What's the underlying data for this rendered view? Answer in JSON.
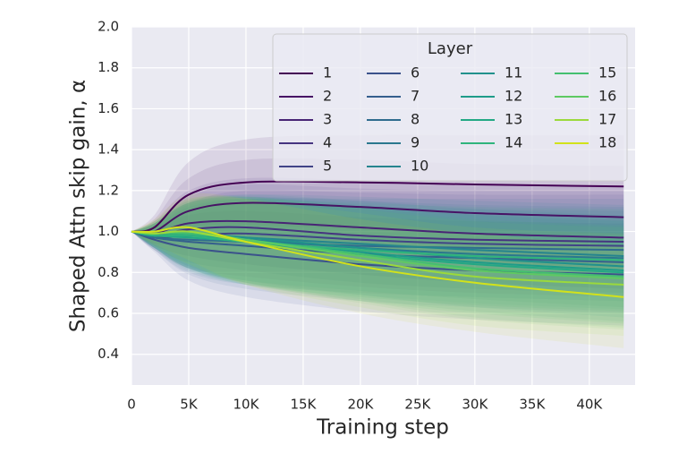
{
  "chart_data": {
    "type": "line",
    "xlabel": "Training step",
    "ylabel": "Shaped Attn skip gain, α",
    "xlim": [
      0,
      44000
    ],
    "ylim": [
      0.25,
      2.0
    ],
    "xticks": [
      0,
      {
        "value": 5000,
        "label": "5K"
      },
      {
        "value": 10000,
        "label": "10K"
      },
      {
        "value": 15000,
        "label": "15K"
      },
      {
        "value": 20000,
        "label": "20K"
      },
      {
        "value": 25000,
        "label": "25K"
      },
      {
        "value": 30000,
        "label": "30K"
      },
      {
        "value": 35000,
        "label": "35K"
      },
      {
        "value": 40000,
        "label": "40K"
      }
    ],
    "yticks": [
      {
        "value": 0.4,
        "label": "0.4"
      },
      {
        "value": 0.6,
        "label": "0.6"
      },
      {
        "value": 0.8,
        "label": "0.8"
      },
      {
        "value": 1.0,
        "label": "1.0"
      },
      {
        "value": 1.2,
        "label": "1.2"
      },
      {
        "value": 1.4,
        "label": "1.4"
      },
      {
        "value": 1.6,
        "label": "1.6"
      },
      {
        "value": 1.8,
        "label": "1.8"
      },
      {
        "value": 2.0,
        "label": "2.0"
      }
    ],
    "grid": true,
    "legend_title": "Layer",
    "legend_loc": "upper right",
    "x": [
      0,
      2000,
      5000,
      10000,
      20000,
      30000,
      43000
    ],
    "series": [
      {
        "name": "1",
        "color": "#440154",
        "values": [
          1.0,
          1.02,
          1.18,
          1.24,
          1.24,
          1.23,
          1.22
        ],
        "lower": [
          1.0,
          0.96,
          1.02,
          1.03,
          1.01,
          0.99,
          0.97
        ],
        "upper": [
          1.0,
          1.08,
          1.34,
          1.45,
          1.47,
          1.47,
          1.47
        ]
      },
      {
        "name": "2",
        "color": "#471365",
        "values": [
          1.0,
          1.0,
          1.1,
          1.14,
          1.12,
          1.09,
          1.07
        ],
        "lower": [
          1.0,
          0.94,
          0.94,
          0.93,
          0.89,
          0.85,
          0.82
        ],
        "upper": [
          1.0,
          1.06,
          1.26,
          1.35,
          1.35,
          1.33,
          1.32
        ]
      },
      {
        "name": "3",
        "color": "#482475",
        "values": [
          1.0,
          0.99,
          1.04,
          1.05,
          1.02,
          0.99,
          0.97
        ],
        "lower": [
          1.0,
          0.93,
          0.88,
          0.84,
          0.79,
          0.75,
          0.72
        ],
        "upper": [
          1.0,
          1.05,
          1.2,
          1.26,
          1.25,
          1.23,
          1.22
        ]
      },
      {
        "name": "4",
        "color": "#463480",
        "values": [
          1.0,
          0.98,
          1.01,
          1.02,
          0.98,
          0.96,
          0.95
        ],
        "lower": [
          1.0,
          0.92,
          0.85,
          0.81,
          0.75,
          0.72,
          0.7
        ],
        "upper": [
          1.0,
          1.04,
          1.17,
          1.23,
          1.21,
          1.2,
          1.2
        ]
      },
      {
        "name": "5",
        "color": "#414487",
        "values": [
          1.0,
          0.97,
          0.98,
          0.99,
          0.96,
          0.94,
          0.93
        ],
        "lower": [
          1.0,
          0.91,
          0.82,
          0.78,
          0.73,
          0.7,
          0.68
        ],
        "upper": [
          1.0,
          1.03,
          1.14,
          1.2,
          1.19,
          1.18,
          1.18
        ]
      },
      {
        "name": "6",
        "color": "#3b528b",
        "values": [
          1.0,
          0.96,
          0.92,
          0.89,
          0.84,
          0.81,
          0.79
        ],
        "lower": [
          1.0,
          0.9,
          0.76,
          0.68,
          0.61,
          0.57,
          0.54
        ],
        "upper": [
          1.0,
          1.02,
          1.08,
          1.1,
          1.07,
          1.05,
          1.04
        ]
      },
      {
        "name": "7",
        "color": "#355f8d",
        "values": [
          1.0,
          0.97,
          0.95,
          0.93,
          0.89,
          0.87,
          0.85
        ],
        "lower": [
          1.0,
          0.91,
          0.79,
          0.72,
          0.66,
          0.63,
          0.6
        ],
        "upper": [
          1.0,
          1.03,
          1.11,
          1.14,
          1.12,
          1.11,
          1.1
        ]
      },
      {
        "name": "8",
        "color": "#2f6c8e",
        "values": [
          1.0,
          0.97,
          0.96,
          0.95,
          0.93,
          0.92,
          0.91
        ],
        "lower": [
          1.0,
          0.91,
          0.8,
          0.74,
          0.7,
          0.68,
          0.66
        ],
        "upper": [
          1.0,
          1.03,
          1.12,
          1.16,
          1.16,
          1.16,
          1.16
        ]
      },
      {
        "name": "9",
        "color": "#2a788e",
        "values": [
          1.0,
          0.98,
          0.98,
          0.96,
          0.92,
          0.89,
          0.87
        ],
        "lower": [
          1.0,
          0.92,
          0.82,
          0.75,
          0.69,
          0.65,
          0.62
        ],
        "upper": [
          1.0,
          1.04,
          1.14,
          1.17,
          1.15,
          1.13,
          1.12
        ]
      },
      {
        "name": "10",
        "color": "#25848e",
        "values": [
          1.0,
          0.98,
          0.98,
          0.97,
          0.94,
          0.91,
          0.88
        ],
        "lower": [
          1.0,
          0.92,
          0.82,
          0.76,
          0.71,
          0.67,
          0.63
        ],
        "upper": [
          1.0,
          1.04,
          1.14,
          1.18,
          1.17,
          1.15,
          1.13
        ]
      },
      {
        "name": "11",
        "color": "#21918c",
        "values": [
          1.0,
          0.98,
          0.99,
          0.97,
          0.92,
          0.87,
          0.83
        ],
        "lower": [
          1.0,
          0.92,
          0.83,
          0.76,
          0.69,
          0.63,
          0.58
        ],
        "upper": [
          1.0,
          1.04,
          1.15,
          1.18,
          1.15,
          1.11,
          1.08
        ]
      },
      {
        "name": "12",
        "color": "#1e9c89",
        "values": [
          1.0,
          0.98,
          0.98,
          0.96,
          0.9,
          0.85,
          0.81
        ],
        "lower": [
          1.0,
          0.92,
          0.82,
          0.75,
          0.67,
          0.61,
          0.56
        ],
        "upper": [
          1.0,
          1.04,
          1.14,
          1.17,
          1.13,
          1.09,
          1.06
        ]
      },
      {
        "name": "13",
        "color": "#22a884",
        "values": [
          1.0,
          0.98,
          0.97,
          0.95,
          0.89,
          0.84,
          0.8
        ],
        "lower": [
          1.0,
          0.92,
          0.81,
          0.74,
          0.66,
          0.6,
          0.55
        ],
        "upper": [
          1.0,
          1.04,
          1.13,
          1.16,
          1.12,
          1.08,
          1.05
        ]
      },
      {
        "name": "14",
        "color": "#2fb47c",
        "values": [
          1.0,
          0.98,
          0.98,
          0.95,
          0.91,
          0.88,
          0.86
        ],
        "lower": [
          1.0,
          0.92,
          0.82,
          0.74,
          0.68,
          0.64,
          0.61
        ],
        "upper": [
          1.0,
          1.04,
          1.14,
          1.16,
          1.14,
          1.12,
          1.11
        ]
      },
      {
        "name": "15",
        "color": "#44bf70",
        "values": [
          1.0,
          0.99,
          0.99,
          0.96,
          0.89,
          0.82,
          0.78
        ],
        "lower": [
          1.0,
          0.93,
          0.83,
          0.75,
          0.66,
          0.58,
          0.53
        ],
        "upper": [
          1.0,
          1.05,
          1.15,
          1.17,
          1.12,
          1.06,
          1.03
        ]
      },
      {
        "name": "16",
        "color": "#5ec962",
        "values": [
          1.0,
          0.99,
          1.0,
          0.96,
          0.88,
          0.81,
          0.77
        ],
        "lower": [
          1.0,
          0.93,
          0.84,
          0.75,
          0.65,
          0.57,
          0.52
        ],
        "upper": [
          1.0,
          1.05,
          1.16,
          1.17,
          1.11,
          1.05,
          1.02
        ]
      },
      {
        "name": "17",
        "color": "#9bd93c",
        "values": [
          1.0,
          0.99,
          1.0,
          0.95,
          0.86,
          0.78,
          0.74
        ],
        "lower": [
          1.0,
          0.93,
          0.84,
          0.74,
          0.63,
          0.54,
          0.49
        ],
        "upper": [
          1.0,
          1.05,
          1.16,
          1.16,
          1.09,
          1.02,
          0.99
        ]
      },
      {
        "name": "18",
        "color": "#d2e21b",
        "values": [
          1.0,
          1.0,
          1.02,
          0.95,
          0.83,
          0.75,
          0.68
        ],
        "lower": [
          1.0,
          0.94,
          0.86,
          0.74,
          0.6,
          0.51,
          0.43
        ],
        "upper": [
          1.0,
          1.06,
          1.18,
          1.16,
          1.06,
          0.99,
          0.93
        ]
      }
    ]
  }
}
